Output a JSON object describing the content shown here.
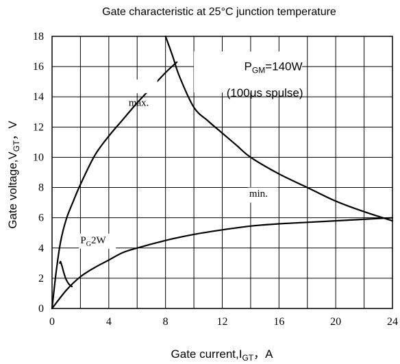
{
  "chart_data": {
    "type": "line",
    "title": "Gate characteristic at 25°C junction temperature",
    "xlabel": {
      "main": "Gate current,I",
      "sub": "GT",
      "tail": "，A"
    },
    "ylabel": {
      "main": "Gate voltage,V",
      "sub": "GT",
      "tail": "，V"
    },
    "xlim": [
      0,
      24
    ],
    "ylim": [
      0,
      18
    ],
    "xticks": [
      0,
      4,
      8,
      12,
      16,
      20,
      24
    ],
    "yticks": [
      0,
      2,
      4,
      6,
      8,
      10,
      12,
      14,
      16,
      18
    ],
    "grid": true,
    "series": [
      {
        "label_key": "max",
        "x": [
          0,
          0.3,
          0.6,
          1.0,
          1.5,
          2,
          3,
          4,
          5,
          6,
          7,
          8,
          8.8
        ],
        "y": [
          0,
          2.5,
          4.4,
          5.9,
          7.1,
          8.2,
          10.1,
          11.4,
          12.5,
          13.6,
          14.6,
          15.6,
          16.3
        ]
      },
      {
        "label_key": "min",
        "x": [
          0,
          1,
          2,
          3,
          4,
          5,
          6,
          8,
          10,
          12,
          14,
          16,
          18,
          20,
          22,
          24
        ],
        "y": [
          0,
          1.2,
          2.1,
          2.7,
          3.2,
          3.7,
          4.0,
          4.5,
          4.9,
          5.2,
          5.45,
          5.6,
          5.7,
          5.8,
          5.9,
          6.0
        ]
      },
      {
        "label_key": "pgm",
        "x": [
          8,
          8.5,
          9,
          10,
          11,
          12,
          13,
          14,
          16,
          18,
          20,
          22,
          24
        ],
        "y": [
          18,
          16.7,
          15.3,
          13.3,
          12.4,
          11.6,
          10.8,
          10.0,
          8.9,
          8.0,
          7.1,
          6.4,
          5.8
        ]
      },
      {
        "label_key": "pg",
        "x": [
          0.55,
          0.6,
          0.7,
          0.85,
          1.0,
          1.2,
          1.4
        ],
        "y": [
          3.0,
          3.1,
          2.8,
          2.3,
          1.9,
          1.6,
          1.45
        ]
      }
    ],
    "annotations": {
      "max": "max.",
      "min": "min.",
      "pgm_main": "P",
      "pgm_sub": "GM",
      "pgm_tail": "=140W",
      "pulse": "(100μs spulse)",
      "pg_main": "P",
      "pg_sub": "G",
      "pg_tail": "2W"
    }
  }
}
